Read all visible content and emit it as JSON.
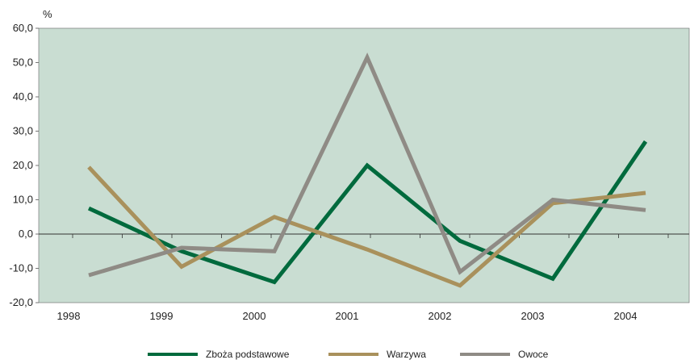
{
  "chart_data": {
    "type": "line",
    "unit_label": "%",
    "categories": [
      "1998",
      "1999",
      "2000",
      "2001",
      "2002",
      "2003",
      "2004"
    ],
    "y_ticks": [
      "60,0",
      "50,0",
      "40,0",
      "30,0",
      "20,0",
      "10,0",
      "0,0",
      "-10,0",
      "-20,0"
    ],
    "ylim": [
      -20,
      60
    ],
    "grid": false,
    "legend_position": "bottom",
    "plot_background": "#c9ddd2",
    "series": [
      {
        "name": "Zboża podstawowe",
        "color": "#006a3d",
        "values": [
          7.5,
          -5.0,
          -14.0,
          20.0,
          -2.0,
          -13.0,
          27.0
        ]
      },
      {
        "name": "Warzywa",
        "color": "#a9915c",
        "values": [
          19.5,
          -9.5,
          5.0,
          -4.5,
          -15.0,
          9.0,
          12.0
        ]
      },
      {
        "name": "Owoce",
        "color": "#8f8b85",
        "values": [
          -12.0,
          -4.0,
          -5.0,
          51.5,
          -11.0,
          10.0,
          7.0
        ]
      }
    ]
  }
}
